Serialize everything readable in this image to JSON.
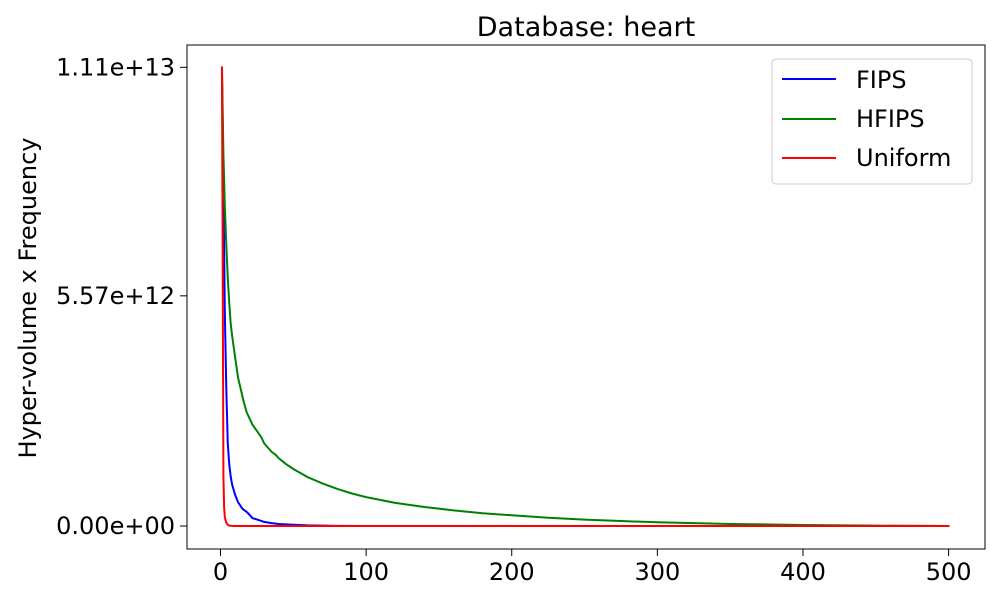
{
  "chart_data": {
    "type": "line",
    "title": "Database: heart",
    "xlabel": "",
    "ylabel": "Hyper-volume x Frequency",
    "xlim": [
      -23,
      525
    ],
    "ylim": [
      -556000000000.0,
      11640000000000.0
    ],
    "xticks": [
      0,
      100,
      200,
      300,
      400,
      500
    ],
    "xtick_labels": [
      "0",
      "100",
      "200",
      "300",
      "400",
      "500"
    ],
    "yticks": [
      0,
      5570000000000.0,
      11100000000000.0
    ],
    "ytick_labels": [
      "0.00e+00",
      "5.57e+12",
      "1.11e+13"
    ],
    "grid": false,
    "legend_position": "top-right",
    "series": [
      {
        "name": "FIPS",
        "color": "#0000ff",
        "x": [
          1,
          2,
          3,
          4,
          5,
          6,
          7,
          8,
          10,
          12,
          15,
          18,
          20,
          22,
          25,
          30,
          35,
          40,
          50,
          60,
          80,
          100,
          150,
          200,
          300,
          400,
          500
        ],
        "y": [
          11100000000000.0,
          8200000000000.0,
          5100000000000.0,
          3300000000000.0,
          2000000000000.0,
          1500000000000.0,
          1200000000000.0,
          1000000000000.0,
          760000000000.0,
          580000000000.0,
          420000000000.0,
          340000000000.0,
          270000000000.0,
          190000000000.0,
          160000000000.0,
          100000000000.0,
          70000000000.0,
          50000000000.0,
          30000000000.0,
          15000000000.0,
          5000000000.0,
          2000000000.0,
          500000000.0,
          100000000.0,
          0,
          0,
          0
        ]
      },
      {
        "name": "HFIPS",
        "color": "#008000",
        "x": [
          1,
          2,
          3,
          4,
          5,
          6,
          7,
          8,
          9,
          10,
          12,
          14,
          16,
          18,
          20,
          22,
          25,
          28,
          30,
          35,
          38,
          40,
          45,
          50,
          55,
          60,
          70,
          80,
          90,
          100,
          120,
          140,
          160,
          180,
          200,
          225,
          250,
          275,
          300,
          350,
          400,
          450,
          500
        ],
        "y": [
          11100000000000.0,
          9000000000000.0,
          7700000000000.0,
          6800000000000.0,
          6000000000000.0,
          5400000000000.0,
          4900000000000.0,
          4600000000000.0,
          4350000000000.0,
          4100000000000.0,
          3600000000000.0,
          3300000000000.0,
          3000000000000.0,
          2750000000000.0,
          2600000000000.0,
          2450000000000.0,
          2300000000000.0,
          2150000000000.0,
          2000000000000.0,
          1800000000000.0,
          1720000000000.0,
          1640000000000.0,
          1500000000000.0,
          1380000000000.0,
          1280000000000.0,
          1180000000000.0,
          1030000000000.0,
          900000000000.0,
          790000000000.0,
          700000000000.0,
          560000000000.0,
          460000000000.0,
          380000000000.0,
          310000000000.0,
          260000000000.0,
          200000000000.0,
          155000000000.0,
          120000000000.0,
          90000000000.0,
          50000000000.0,
          25000000000.0,
          10000000000.0,
          0
        ]
      },
      {
        "name": "Uniform",
        "color": "#ff0000",
        "x": [
          1,
          1.5,
          2,
          2.5,
          3,
          4,
          5,
          6,
          8,
          10,
          20,
          50,
          100,
          200,
          300,
          400,
          500
        ],
        "y": [
          11100000000000.0,
          6500000000000.0,
          1200000000000.0,
          450000000000.0,
          200000000000.0,
          80000000000.0,
          30000000000.0,
          10000000000.0,
          3000000000.0,
          1000000000.0,
          0,
          0,
          0,
          0,
          0,
          0,
          0
        ]
      }
    ]
  }
}
